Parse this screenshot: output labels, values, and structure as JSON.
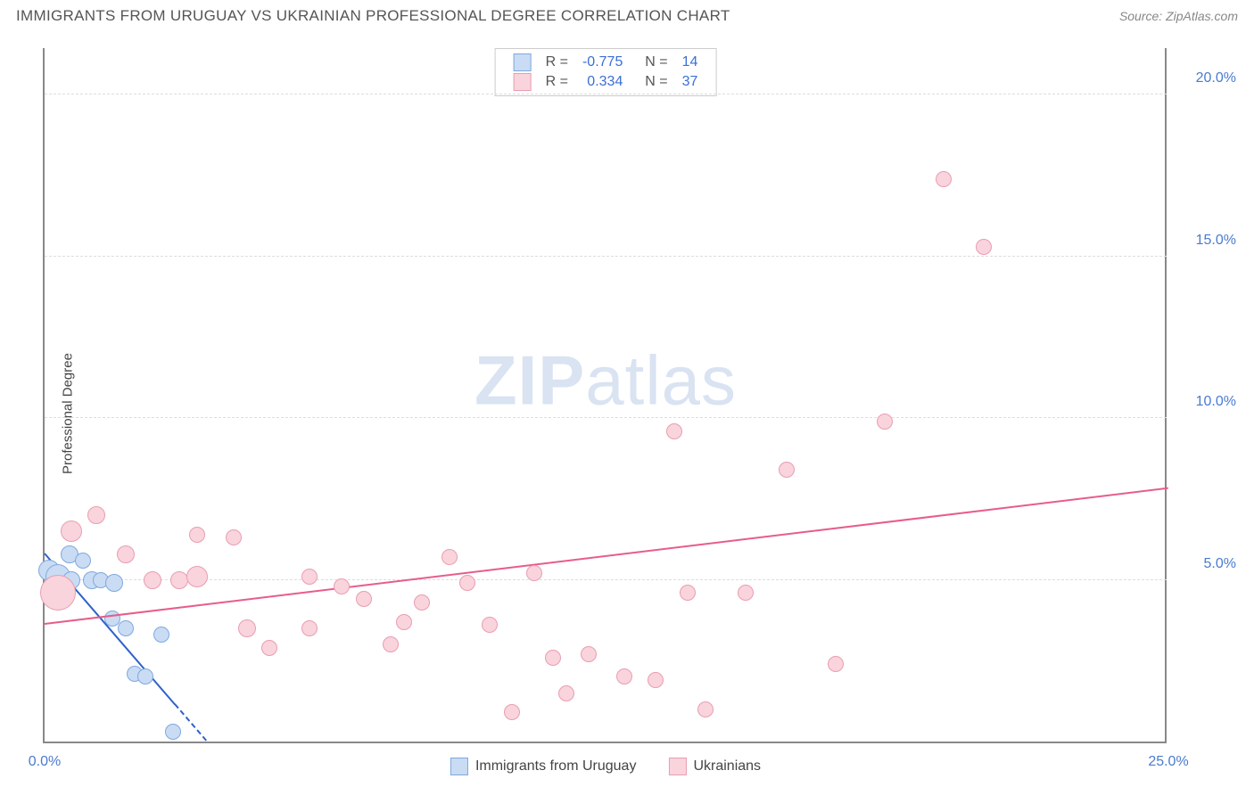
{
  "header": {
    "title": "IMMIGRANTS FROM URUGUAY VS UKRAINIAN PROFESSIONAL DEGREE CORRELATION CHART",
    "source_label": "Source: ",
    "source_value": "ZipAtlas.com"
  },
  "watermark": {
    "zip": "ZIP",
    "atlas": "atlas"
  },
  "chart": {
    "type": "scatter",
    "ylabel": "Professional Degree",
    "x_min": 0.0,
    "x_max": 25.0,
    "y_min": 0.0,
    "y_max": 21.5,
    "x_ticks": [
      {
        "v": 0.0,
        "label": "0.0%"
      },
      {
        "v": 25.0,
        "label": "25.0%"
      }
    ],
    "y_ticks": [
      {
        "v": 5.0,
        "label": "5.0%"
      },
      {
        "v": 10.0,
        "label": "10.0%"
      },
      {
        "v": 15.0,
        "label": "15.0%"
      },
      {
        "v": 20.0,
        "label": "20.0%"
      }
    ],
    "grid_color": "#dddddd",
    "axis_color": "#888888",
    "background_color": "#ffffff",
    "tick_label_color": "#4a7bd0",
    "series": [
      {
        "key": "uruguay",
        "name": "Immigrants from Uruguay",
        "fill": "#c9dcf3",
        "stroke": "#7fa8e0",
        "R": "-0.775",
        "N": "14",
        "trend": {
          "x1": 0.0,
          "y1": 5.8,
          "x2": 3.6,
          "y2": 0.0,
          "solid_to_x": 2.9,
          "color": "#2f62c9"
        },
        "points": [
          {
            "x": 0.1,
            "y": 5.3,
            "r": 12
          },
          {
            "x": 0.3,
            "y": 5.1,
            "r": 14
          },
          {
            "x": 0.55,
            "y": 5.8,
            "r": 10
          },
          {
            "x": 0.6,
            "y": 5.0,
            "r": 10
          },
          {
            "x": 0.85,
            "y": 5.6,
            "r": 9
          },
          {
            "x": 1.05,
            "y": 5.0,
            "r": 10
          },
          {
            "x": 1.25,
            "y": 5.0,
            "r": 9
          },
          {
            "x": 1.55,
            "y": 4.9,
            "r": 10
          },
          {
            "x": 1.5,
            "y": 3.8,
            "r": 9
          },
          {
            "x": 1.8,
            "y": 3.5,
            "r": 9
          },
          {
            "x": 2.0,
            "y": 2.1,
            "r": 9
          },
          {
            "x": 2.25,
            "y": 2.0,
            "r": 9
          },
          {
            "x": 2.6,
            "y": 3.3,
            "r": 9
          },
          {
            "x": 2.85,
            "y": 0.3,
            "r": 9
          }
        ]
      },
      {
        "key": "ukrainians",
        "name": "Ukrainians",
        "fill": "#f9d4dd",
        "stroke": "#e99db0",
        "R": "0.334",
        "N": "37",
        "trend": {
          "x1": 0.0,
          "y1": 3.6,
          "x2": 25.0,
          "y2": 7.8,
          "solid_to_x": 25.0,
          "color": "#e75d89"
        },
        "points": [
          {
            "x": 0.3,
            "y": 4.6,
            "r": 20
          },
          {
            "x": 0.6,
            "y": 6.5,
            "r": 12
          },
          {
            "x": 1.15,
            "y": 7.0,
            "r": 10
          },
          {
            "x": 1.8,
            "y": 5.8,
            "r": 10
          },
          {
            "x": 2.4,
            "y": 5.0,
            "r": 10
          },
          {
            "x": 3.0,
            "y": 5.0,
            "r": 10
          },
          {
            "x": 3.4,
            "y": 6.4,
            "r": 9
          },
          {
            "x": 3.4,
            "y": 5.1,
            "r": 12
          },
          {
            "x": 4.2,
            "y": 6.3,
            "r": 9
          },
          {
            "x": 4.5,
            "y": 3.5,
            "r": 10
          },
          {
            "x": 5.0,
            "y": 2.9,
            "r": 9
          },
          {
            "x": 5.9,
            "y": 3.5,
            "r": 9
          },
          {
            "x": 5.9,
            "y": 5.1,
            "r": 9
          },
          {
            "x": 6.6,
            "y": 4.8,
            "r": 9
          },
          {
            "x": 7.1,
            "y": 4.4,
            "r": 9
          },
          {
            "x": 7.7,
            "y": 3.0,
            "r": 9
          },
          {
            "x": 8.0,
            "y": 3.7,
            "r": 9
          },
          {
            "x": 8.4,
            "y": 4.3,
            "r": 9
          },
          {
            "x": 9.0,
            "y": 5.7,
            "r": 9
          },
          {
            "x": 9.4,
            "y": 4.9,
            "r": 9
          },
          {
            "x": 9.9,
            "y": 3.6,
            "r": 9
          },
          {
            "x": 10.4,
            "y": 0.9,
            "r": 9
          },
          {
            "x": 10.9,
            "y": 5.2,
            "r": 9
          },
          {
            "x": 11.3,
            "y": 2.6,
            "r": 9
          },
          {
            "x": 11.6,
            "y": 1.5,
            "r": 9
          },
          {
            "x": 12.1,
            "y": 2.7,
            "r": 9
          },
          {
            "x": 12.9,
            "y": 2.0,
            "r": 9
          },
          {
            "x": 13.6,
            "y": 1.9,
            "r": 9
          },
          {
            "x": 14.0,
            "y": 9.6,
            "r": 9
          },
          {
            "x": 14.3,
            "y": 4.6,
            "r": 9
          },
          {
            "x": 14.7,
            "y": 1.0,
            "r": 9
          },
          {
            "x": 15.6,
            "y": 4.6,
            "r": 9
          },
          {
            "x": 16.5,
            "y": 8.4,
            "r": 9
          },
          {
            "x": 17.6,
            "y": 2.4,
            "r": 9
          },
          {
            "x": 18.7,
            "y": 9.9,
            "r": 9
          },
          {
            "x": 20.0,
            "y": 17.4,
            "r": 9
          },
          {
            "x": 20.9,
            "y": 15.3,
            "r": 9
          }
        ]
      }
    ],
    "legend_bottom": [
      {
        "series": "uruguay"
      },
      {
        "series": "ukrainians"
      }
    ]
  }
}
